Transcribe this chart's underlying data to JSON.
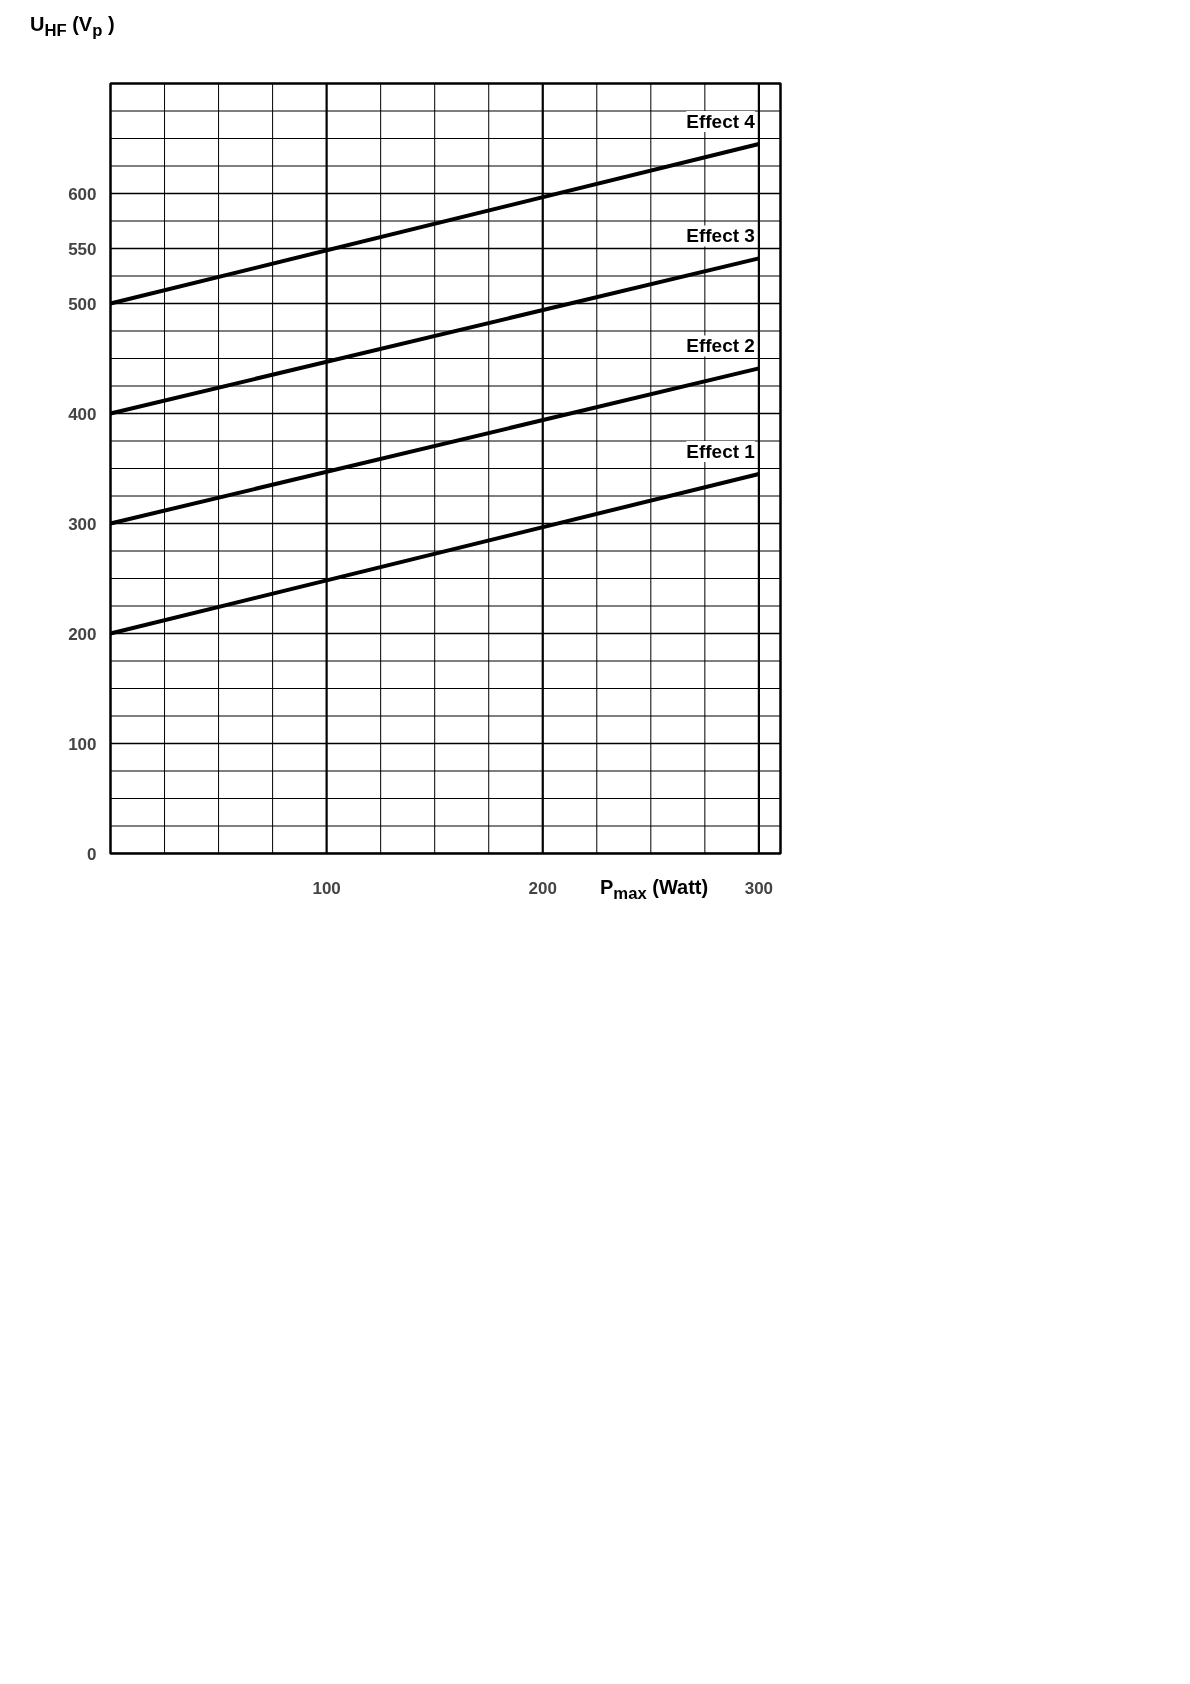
{
  "chart_data": {
    "type": "line",
    "xlabel": "P$_{max}$ (Watt)",
    "ylabel": "U$_{HF}$ (V$_{p}$ )",
    "xlim": [
      0,
      310
    ],
    "ylim": [
      0,
      700
    ],
    "xticks": [
      {
        "value": 0,
        "label": null
      },
      {
        "value": 25,
        "label": null
      },
      {
        "value": 50,
        "label": null
      },
      {
        "value": 75,
        "label": null
      },
      100,
      {
        "value": 125,
        "label": null
      },
      {
        "value": 150,
        "label": null
      },
      {
        "value": 175,
        "label": null
      },
      200,
      {
        "value": 225,
        "label": null
      },
      {
        "value": 250,
        "label": null
      },
      {
        "value": 275,
        "label": null
      },
      300
    ],
    "yticks": [
      0,
      {
        "value": 25,
        "label": null
      },
      {
        "value": 50,
        "label": null
      },
      {
        "value": 75,
        "label": null
      },
      100,
      {
        "value": 125,
        "label": null
      },
      {
        "value": 150,
        "label": null
      },
      {
        "value": 175,
        "label": null
      },
      200,
      {
        "value": 225,
        "label": null
      },
      {
        "value": 250,
        "label": null
      },
      {
        "value": 275,
        "label": null
      },
      300,
      {
        "value": 325,
        "label": null
      },
      {
        "value": 350,
        "label": null
      },
      {
        "value": 375,
        "label": null
      },
      400,
      {
        "value": 425,
        "label": null
      },
      {
        "value": 450,
        "label": null
      },
      {
        "value": 475,
        "label": null
      },
      500,
      {
        "value": 525,
        "label": null
      },
      550,
      {
        "value": 575,
        "label": null
      },
      600,
      {
        "value": 625,
        "label": null
      },
      {
        "value": 650,
        "label": null
      },
      {
        "value": 675,
        "label": null
      }
    ],
    "x": [
      0,
      300
    ],
    "grid": true,
    "series": [
      {
        "name": "Effect 1",
        "color": "#000000",
        "values": [
          200,
          345
        ]
      },
      {
        "name": "Effect 2",
        "color": "#000000",
        "values": [
          300,
          441
        ]
      },
      {
        "name": "Effect 3",
        "color": "#000000",
        "values": [
          400,
          541
        ]
      },
      {
        "name": "Effect 4",
        "color": "#000000",
        "values": [
          500,
          645
        ]
      }
    ]
  }
}
